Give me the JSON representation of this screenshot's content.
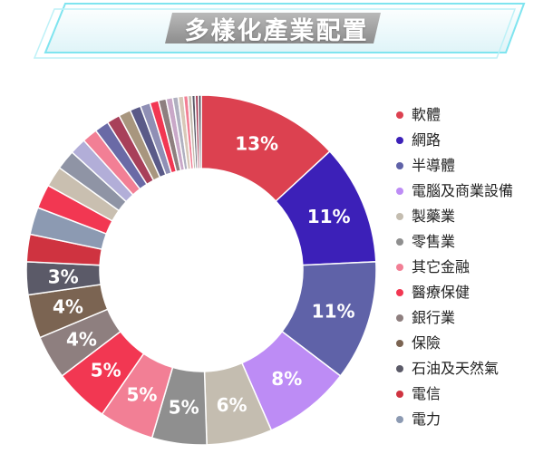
{
  "header": {
    "title": "多樣化產業配置"
  },
  "chart_data": {
    "type": "pie",
    "donut": true,
    "title": "多樣化產業配置",
    "legend_position": "right",
    "slices": [
      {
        "label": "軟體",
        "value": 13,
        "display": "13%",
        "color": "#dc4150"
      },
      {
        "label": "網路",
        "value": 11,
        "display": "11%",
        "color": "#3c20b8"
      },
      {
        "label": "半導體",
        "value": 11,
        "display": "11%",
        "color": "#5f62a8"
      },
      {
        "label": "電腦及商業設備",
        "value": 8,
        "display": "8%",
        "color": "#bd8cf5"
      },
      {
        "label": "製藥業",
        "value": 6,
        "display": "6%",
        "color": "#c4bdb0"
      },
      {
        "label": "零售業",
        "value": 5,
        "display": "5%",
        "color": "#8f8f8f"
      },
      {
        "label": "其它金融",
        "value": 5,
        "display": "5%",
        "color": "#f27f95"
      },
      {
        "label": "醫療保健",
        "value": 5,
        "display": "5%",
        "color": "#f23752"
      },
      {
        "label": "銀行業",
        "value": 4,
        "display": "4%",
        "color": "#8e7f7f"
      },
      {
        "label": "保險",
        "value": 4,
        "display": "4%",
        "color": "#7b6452"
      },
      {
        "label": "石油及天然氣",
        "value": 3,
        "display": "3%",
        "color": "#5b5a68"
      },
      {
        "label": "電信",
        "value": 2.5,
        "display": "",
        "color": "#cf3340"
      },
      {
        "label": "電力",
        "value": 2.5,
        "display": "",
        "color": "#8c9ab2"
      },
      {
        "label": "",
        "value": 2.2,
        "display": "",
        "color": "#f23752"
      },
      {
        "label": "",
        "value": 1.9,
        "display": "",
        "color": "#c9bfb0"
      },
      {
        "label": "",
        "value": 1.8,
        "display": "",
        "color": "#8f94a5"
      },
      {
        "label": "",
        "value": 1.5,
        "display": "",
        "color": "#b2aed8"
      },
      {
        "label": "",
        "value": 1.4,
        "display": "",
        "color": "#f27f95"
      },
      {
        "label": "",
        "value": 1.3,
        "display": "",
        "color": "#6a6aa6"
      },
      {
        "label": "",
        "value": 1.2,
        "display": "",
        "color": "#a8405a"
      },
      {
        "label": "",
        "value": 1.1,
        "display": "",
        "color": "#a8967e"
      },
      {
        "label": "",
        "value": 1.0,
        "display": "",
        "color": "#5a5a88"
      },
      {
        "label": "",
        "value": 0.9,
        "display": "",
        "color": "#8f8fb5"
      },
      {
        "label": "",
        "value": 0.8,
        "display": "",
        "color": "#f23752"
      },
      {
        "label": "",
        "value": 0.7,
        "display": "",
        "color": "#8e7f7f"
      },
      {
        "label": "",
        "value": 0.6,
        "display": "",
        "color": "#c9a8c8"
      },
      {
        "label": "",
        "value": 0.5,
        "display": "",
        "color": "#b0b0c0"
      },
      {
        "label": "",
        "value": 0.5,
        "display": "",
        "color": "#d8c8b8"
      },
      {
        "label": "",
        "value": 0.4,
        "display": "",
        "color": "#f27f95"
      },
      {
        "label": "",
        "value": 0.35,
        "display": "",
        "color": "#c4bdb0"
      },
      {
        "label": "",
        "value": 0.3,
        "display": "",
        "color": "#5b5a68"
      },
      {
        "label": "",
        "value": 0.3,
        "display": "",
        "color": "#a8405a"
      },
      {
        "label": "",
        "value": 0.25,
        "display": "",
        "color": "#333344"
      }
    ]
  }
}
